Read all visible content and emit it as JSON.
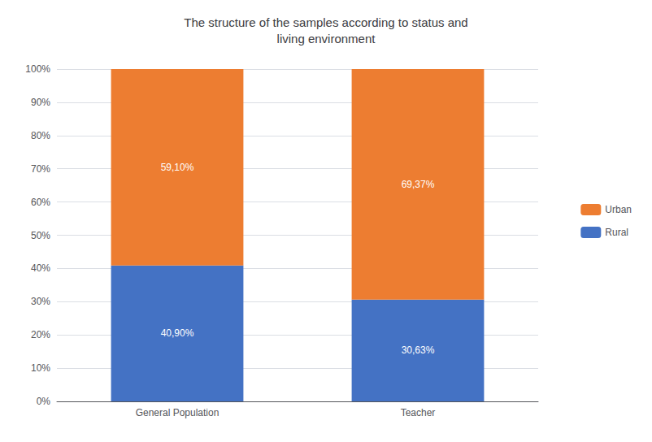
{
  "chart_data": {
    "type": "bar",
    "title": "The structure of the samples according to status and\nliving environment",
    "categories": [
      "General Population",
      "Teacher"
    ],
    "stacked": true,
    "series": [
      {
        "name": "Rural",
        "color": "#4472C4",
        "values": [
          40.9,
          30.63
        ],
        "value_labels": [
          "40,90%",
          "30,63%"
        ]
      },
      {
        "name": "Urban",
        "color": "#ED7D31",
        "values": [
          59.1,
          69.37
        ],
        "value_labels": [
          "59,10%",
          "69,37%"
        ]
      }
    ],
    "ylim": [
      0,
      100
    ],
    "yticks": [
      {
        "value": 0,
        "label": "0%"
      },
      {
        "value": 10,
        "label": "10%"
      },
      {
        "value": 20,
        "label": "20%"
      },
      {
        "value": 30,
        "label": "30%"
      },
      {
        "value": 40,
        "label": "40%"
      },
      {
        "value": 50,
        "label": "50%"
      },
      {
        "value": 60,
        "label": "60%"
      },
      {
        "value": 70,
        "label": "70%"
      },
      {
        "value": 80,
        "label": "80%"
      },
      {
        "value": 90,
        "label": "90%"
      },
      {
        "value": 100,
        "label": "100%"
      }
    ],
    "grid": true,
    "legend": "right",
    "data_labels": true
  }
}
